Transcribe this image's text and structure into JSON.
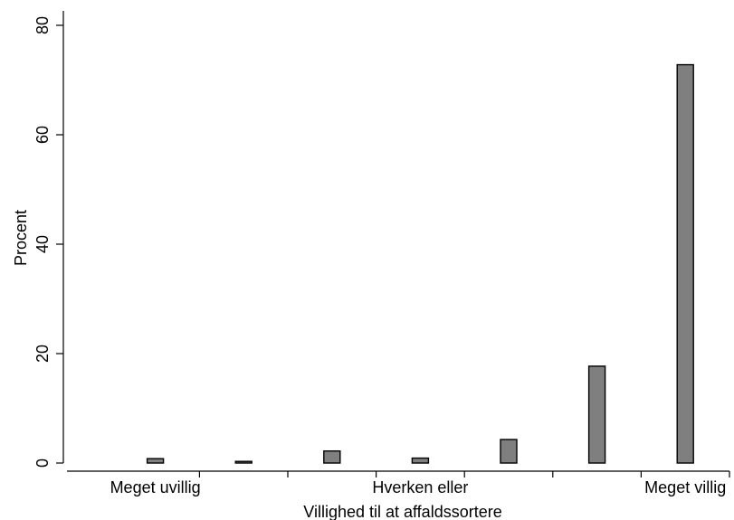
{
  "chart_data": {
    "type": "bar",
    "xlabel": "Villighed til at affaldssortere",
    "ylabel": "Procent",
    "ylim": [
      0,
      80
    ],
    "yticks": [
      0,
      20,
      40,
      60,
      80
    ],
    "xlim": [
      0.5,
      8.0
    ],
    "xtick_positions": [
      1.5,
      2.5,
      3.5,
      4.5,
      5.5,
      6.5,
      7.5
    ],
    "x_category_labels": [
      {
        "x": 1.5,
        "label": "Meget uvillig"
      },
      {
        "x": 4.5,
        "label": "Hverken eller"
      },
      {
        "x": 7.5,
        "label": "Meget villig"
      }
    ],
    "bars": [
      {
        "x": 1.5,
        "value": 0.8
      },
      {
        "x": 2.5,
        "value": 0.3
      },
      {
        "x": 3.5,
        "value": 2.2
      },
      {
        "x": 4.5,
        "value": 0.9
      },
      {
        "x": 5.5,
        "value": 4.3
      },
      {
        "x": 6.5,
        "value": 17.7
      },
      {
        "x": 7.5,
        "value": 72.8
      }
    ],
    "bar_color": "#7f7f7f",
    "grid": false,
    "legend": "none"
  }
}
